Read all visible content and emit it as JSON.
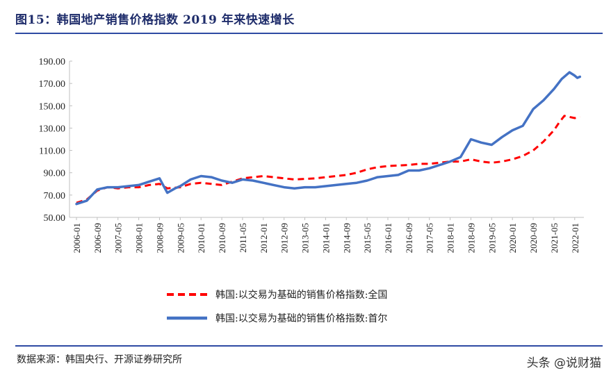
{
  "header": {
    "title": "图15：韩国地产销售价格指数 2019 年来快速增长"
  },
  "footer": {
    "source": "数据来源：韩国央行、开源证券研究所",
    "watermark": "头条 @说财猫"
  },
  "colors": {
    "national": "#ff0000",
    "seoul": "#4472c4",
    "rule": "#2e4aa3",
    "title": "#1f2d6b"
  },
  "chart_data": {
    "type": "line",
    "title": "",
    "xlabel": "",
    "ylabel": "",
    "ylim": [
      50,
      190
    ],
    "yticks": [
      "190.00",
      "170.00",
      "150.00",
      "130.00",
      "110.00",
      "90.00",
      "70.00",
      "50.00"
    ],
    "xticks": [
      "2006-01",
      "2006-09",
      "2007-05",
      "2008-01",
      "2008-09",
      "2009-05",
      "2010-01",
      "2010-09",
      "2011-05",
      "2012-01",
      "2012-09",
      "2013-05",
      "2014-01",
      "2014-09",
      "2015-05",
      "2016-01",
      "2016-09",
      "2017-05",
      "2018-01",
      "2018-09",
      "2019-05",
      "2020-01",
      "2020-09",
      "2021-05",
      "2022-01"
    ],
    "legend_position": "bottom",
    "grid": false,
    "series": [
      {
        "name": "韩国:以交易为基础的销售价格指数:全国",
        "style": "dashed",
        "x": [
          "2006-01",
          "2006-05",
          "2006-09",
          "2007-01",
          "2007-05",
          "2007-09",
          "2008-01",
          "2008-05",
          "2008-09",
          "2008-12",
          "2009-05",
          "2009-09",
          "2010-01",
          "2010-05",
          "2010-09",
          "2011-01",
          "2011-05",
          "2011-09",
          "2012-01",
          "2012-05",
          "2012-09",
          "2013-01",
          "2013-05",
          "2013-09",
          "2014-01",
          "2014-05",
          "2014-09",
          "2015-01",
          "2015-05",
          "2015-09",
          "2016-01",
          "2016-05",
          "2016-09",
          "2017-01",
          "2017-05",
          "2017-09",
          "2018-01",
          "2018-05",
          "2018-09",
          "2019-01",
          "2019-05",
          "2019-09",
          "2020-01",
          "2020-05",
          "2020-09",
          "2021-01",
          "2021-05",
          "2021-07",
          "2021-09",
          "2022-01",
          "2022-03"
        ],
        "values": [
          63,
          66,
          74,
          77,
          76,
          77,
          77,
          79,
          80,
          76,
          77,
          80,
          81,
          80,
          79,
          82,
          85,
          86,
          87,
          86,
          85,
          84,
          84.5,
          85,
          86,
          87,
          88,
          90,
          93,
          95,
          96,
          96.5,
          97,
          98,
          98,
          99,
          100,
          100,
          102,
          100,
          99,
          100,
          102,
          105,
          110,
          118,
          128,
          135,
          141,
          139,
          140
        ]
      },
      {
        "name": "韩国:以交易为基础的销售价格指数:首尔",
        "style": "solid",
        "x": [
          "2006-01",
          "2006-05",
          "2006-09",
          "2007-01",
          "2007-05",
          "2007-09",
          "2008-01",
          "2008-05",
          "2008-09",
          "2008-12",
          "2009-03",
          "2009-05",
          "2009-09",
          "2010-01",
          "2010-05",
          "2010-09",
          "2011-01",
          "2011-05",
          "2011-09",
          "2012-01",
          "2012-05",
          "2012-09",
          "2013-01",
          "2013-05",
          "2013-09",
          "2014-01",
          "2014-05",
          "2014-09",
          "2015-01",
          "2015-05",
          "2015-09",
          "2016-01",
          "2016-05",
          "2016-09",
          "2017-01",
          "2017-05",
          "2017-09",
          "2018-01",
          "2018-05",
          "2018-09",
          "2019-01",
          "2019-05",
          "2019-09",
          "2020-01",
          "2020-05",
          "2020-09",
          "2021-01",
          "2021-05",
          "2021-08",
          "2021-11",
          "2022-01",
          "2022-02",
          "2022-03"
        ],
        "values": [
          62,
          65,
          75,
          77,
          77,
          78,
          79,
          82,
          85,
          72,
          76,
          78,
          84,
          87,
          86,
          83,
          81,
          84,
          83,
          81,
          79,
          77,
          76,
          77,
          77,
          78,
          79,
          80,
          81,
          83,
          86,
          87,
          88,
          92,
          92,
          94,
          97,
          100,
          104,
          120,
          117,
          115,
          122,
          128,
          132,
          147,
          155,
          165,
          174,
          180,
          177,
          175,
          176
        ]
      }
    ]
  }
}
